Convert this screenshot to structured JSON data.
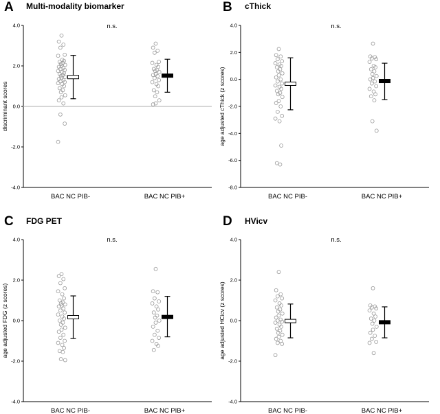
{
  "chart_data": [
    {
      "type": "scatter",
      "panel_letter": "A",
      "title": "Multi-modality biomarker",
      "ylabel": "discriminant scores",
      "xlabel": "",
      "ylim": [
        -4.0,
        4.0
      ],
      "yticks": [
        -4.0,
        -2.0,
        0.0,
        2.0,
        4.0
      ],
      "ytick_labels": [
        "-4.0",
        "-2.0",
        "0.0",
        "2.0",
        "4.0"
      ],
      "zero_line": true,
      "annotation": "n.s.",
      "categories": [
        "BAC NC PIB-",
        "BAC NC PIB+"
      ],
      "series": [
        {
          "name": "BAC NC PIB-",
          "mean": 1.45,
          "error_low": 0.38,
          "error_high": 2.52,
          "marker_fill": "#ffffff",
          "points": [
            3.5,
            3.2,
            3.05,
            2.9,
            2.55,
            2.5,
            2.3,
            2.25,
            2.2,
            2.15,
            2.1,
            2.05,
            2.0,
            1.95,
            1.9,
            1.85,
            1.8,
            1.75,
            1.7,
            1.65,
            1.6,
            1.55,
            1.5,
            1.45,
            1.4,
            1.35,
            1.3,
            1.25,
            1.2,
            1.15,
            1.1,
            1.0,
            0.9,
            0.8,
            0.7,
            0.55,
            0.45,
            0.3,
            0.15,
            -0.4,
            -0.85,
            -1.75
          ]
        },
        {
          "name": "BAC NC PIB+",
          "mean": 1.52,
          "error_low": 0.7,
          "error_high": 2.33,
          "marker_fill": "#000000",
          "points": [
            3.1,
            2.9,
            2.75,
            2.65,
            2.2,
            2.15,
            2.05,
            1.95,
            1.85,
            1.8,
            1.75,
            1.7,
            1.6,
            1.55,
            1.5,
            1.4,
            1.3,
            1.2,
            1.1,
            1.0,
            0.8,
            0.7,
            0.5,
            0.3,
            0.15,
            0.1
          ]
        }
      ]
    },
    {
      "type": "scatter",
      "panel_letter": "B",
      "title": "cThick",
      "ylabel": "age adjusted cThick (z scores)",
      "xlabel": "",
      "ylim": [
        -8.0,
        4.0
      ],
      "yticks": [
        -8.0,
        -6.0,
        -4.0,
        -2.0,
        0.0,
        2.0,
        4.0
      ],
      "ytick_labels": [
        "-8.0",
        "-6.0",
        "-4.0",
        "-2.0",
        "0.0",
        "2.0",
        "4.0"
      ],
      "zero_line": false,
      "annotation": "n.s.",
      "categories": [
        "BAC NC PIB-",
        "BAC NC PIB+"
      ],
      "series": [
        {
          "name": "BAC NC PIB-",
          "mean": -0.32,
          "error_low": -2.25,
          "error_high": 1.6,
          "marker_fill": "#ffffff",
          "points": [
            2.25,
            1.8,
            1.7,
            1.5,
            1.35,
            1.2,
            1.1,
            1.0,
            0.9,
            0.75,
            0.6,
            0.45,
            0.3,
            0.15,
            0.0,
            -0.15,
            -0.3,
            -0.45,
            -0.55,
            -0.7,
            -0.85,
            -1.0,
            -1.1,
            -1.3,
            -1.6,
            -1.75,
            -2.0,
            -2.4,
            -2.7,
            -2.9,
            -3.1,
            -4.9,
            -6.2,
            -6.3
          ]
        },
        {
          "name": "BAC NC PIB+",
          "mean": -0.12,
          "error_low": -1.5,
          "error_high": 1.2,
          "marker_fill": "#000000",
          "points": [
            2.65,
            1.7,
            1.65,
            1.55,
            1.5,
            1.3,
            1.0,
            0.9,
            0.75,
            0.6,
            0.4,
            0.25,
            0.1,
            0.0,
            -0.15,
            -0.3,
            -0.5,
            -0.7,
            -0.9,
            -1.1,
            -1.25,
            -1.55,
            -3.1,
            -3.8
          ]
        }
      ]
    },
    {
      "type": "scatter",
      "panel_letter": "C",
      "title": "FDG PET",
      "ylabel": "age adjusted FDG (z scores)",
      "xlabel": "",
      "ylim": [
        -4.0,
        4.0
      ],
      "yticks": [
        -4.0,
        -2.0,
        0.0,
        2.0,
        4.0
      ],
      "ytick_labels": [
        "-4.0",
        "-2.0",
        "0.0",
        "2.0",
        "4.0"
      ],
      "zero_line": false,
      "annotation": "n.s.",
      "categories": [
        "BAC NC PIB-",
        "BAC NC PIB+"
      ],
      "series": [
        {
          "name": "BAC NC PIB-",
          "mean": 0.17,
          "error_low": -0.88,
          "error_high": 1.22,
          "marker_fill": "#ffffff",
          "points": [
            2.3,
            2.2,
            2.05,
            1.85,
            1.6,
            1.45,
            1.3,
            1.1,
            1.0,
            0.9,
            0.85,
            0.8,
            0.75,
            0.7,
            0.6,
            0.5,
            0.4,
            0.3,
            0.2,
            0.1,
            0.0,
            -0.1,
            -0.2,
            -0.35,
            -0.45,
            -0.55,
            -0.7,
            -0.85,
            -1.0,
            -1.1,
            -1.2,
            -1.35,
            -1.5,
            -1.55,
            -1.9,
            -1.95
          ]
        },
        {
          "name": "BAC NC PIB+",
          "mean": 0.18,
          "error_low": -0.8,
          "error_high": 1.2,
          "marker_fill": "#000000",
          "points": [
            2.55,
            1.45,
            1.4,
            1.1,
            0.95,
            0.85,
            0.7,
            0.55,
            0.4,
            0.25,
            0.15,
            0.0,
            -0.1,
            -0.3,
            -0.5,
            -0.7,
            -0.85,
            -1.0,
            -1.15,
            -1.25,
            -1.45
          ]
        }
      ]
    },
    {
      "type": "scatter",
      "panel_letter": "D",
      "title": "HVicv",
      "ylabel": "age adjusted HCicv (z scores)",
      "xlabel": "",
      "ylim": [
        -4.0,
        4.0
      ],
      "yticks": [
        -4.0,
        -2.0,
        0.0,
        2.0,
        4.0
      ],
      "ytick_labels": [
        "-4.0",
        "-2.0",
        "0.0",
        "2.0",
        "4.0"
      ],
      "zero_line": false,
      "annotation": "n.s.",
      "categories": [
        "BAC NC PIB-",
        "BAC NC PIB+"
      ],
      "series": [
        {
          "name": "BAC NC PIB-",
          "mean": -0.02,
          "error_low": -0.85,
          "error_high": 0.82,
          "marker_fill": "#ffffff",
          "points": [
            2.4,
            1.5,
            1.3,
            1.2,
            1.1,
            1.0,
            0.85,
            0.75,
            0.65,
            0.55,
            0.45,
            0.35,
            0.25,
            0.15,
            0.05,
            0.0,
            -0.05,
            -0.1,
            -0.2,
            -0.3,
            -0.4,
            -0.5,
            -0.6,
            -0.7,
            -0.8,
            -0.9,
            -1.0,
            -1.1,
            -1.15,
            -1.7
          ]
        },
        {
          "name": "BAC NC PIB+",
          "mean": -0.08,
          "error_low": -0.85,
          "error_high": 0.68,
          "marker_fill": "#000000",
          "points": [
            1.6,
            0.75,
            0.7,
            0.65,
            0.6,
            0.5,
            0.35,
            0.2,
            0.1,
            0.0,
            -0.15,
            -0.3,
            -0.45,
            -0.6,
            -0.75,
            -0.9,
            -1.05,
            -1.1,
            -1.6
          ]
        }
      ]
    }
  ]
}
